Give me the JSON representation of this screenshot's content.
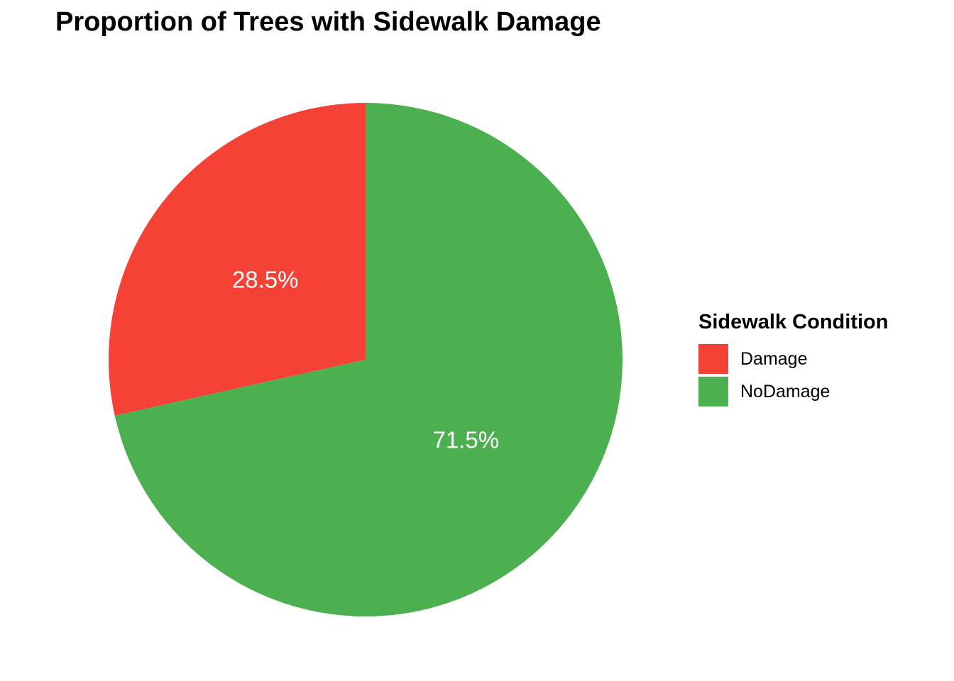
{
  "chart_data": {
    "type": "pie",
    "title": "Proportion of Trees with Sidewalk Damage",
    "legend_title": "Sidewalk Condition",
    "legend_position": "right",
    "start_angle_deg": 0,
    "direction": "counterclockwise",
    "categories": [
      "Damage",
      "NoDamage"
    ],
    "values": [
      28.5,
      71.5
    ],
    "labels": [
      "28.5%",
      "71.5%"
    ],
    "colors": [
      "#F44336",
      "#4CAF50"
    ]
  }
}
